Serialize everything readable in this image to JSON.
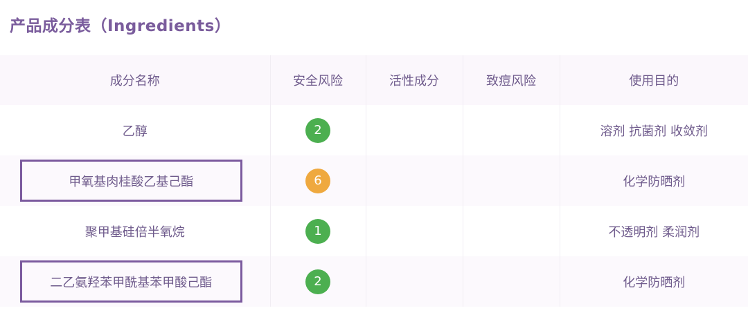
{
  "title": "产品成分表（Ingredients）",
  "columns": [
    "成分名称",
    "安全风险",
    "活性成分",
    "致痘风险",
    "使用目的"
  ],
  "colors": {
    "low_risk": "#4caf50",
    "medium_risk": "#efa93f",
    "highlight_border": "#7b5a9e"
  },
  "rows": [
    {
      "name": "乙醇",
      "risk": "2",
      "risk_level": "low",
      "active": "",
      "acne": "",
      "purpose": "溶剂 抗菌剂 收敛剂",
      "highlighted": false
    },
    {
      "name": "甲氧基肉桂酸乙基己酯",
      "risk": "6",
      "risk_level": "medium",
      "active": "",
      "acne": "",
      "purpose": "化学防晒剂",
      "highlighted": true
    },
    {
      "name": "聚甲基硅倍半氧烷",
      "risk": "1",
      "risk_level": "low",
      "active": "",
      "acne": "",
      "purpose": "不透明剂 柔润剂",
      "highlighted": false
    },
    {
      "name": "二乙氨羟苯甲酰基苯甲酸己酯",
      "risk": "2",
      "risk_level": "low",
      "active": "",
      "acne": "",
      "purpose": "化学防晒剂",
      "highlighted": true
    }
  ]
}
